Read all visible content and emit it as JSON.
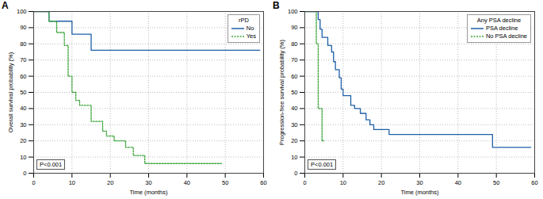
{
  "chart_data": [
    {
      "type": "line",
      "title": "A",
      "x_label": "Time (months)",
      "y_label": "Overall survival probability (%)",
      "xlim": [
        0,
        60
      ],
      "xticks": [
        0,
        10,
        20,
        30,
        40,
        50,
        60
      ],
      "ylim": [
        0,
        100
      ],
      "yticks": [
        0,
        10,
        20,
        30,
        40,
        50,
        60,
        70,
        80,
        90,
        100
      ],
      "grid": true,
      "legend": "top-right",
      "legend_title": "rPD",
      "annotation": "P<0.001",
      "series": [
        {
          "name": "No",
          "color": "#1f5fa8",
          "line_style": "solid",
          "x": [
            0,
            4,
            10,
            15,
            59
          ],
          "values": [
            100,
            94,
            86,
            76,
            76
          ]
        },
        {
          "name": "Yes",
          "color": "#3aa53a",
          "line_style": "dotted",
          "x": [
            0,
            4,
            6,
            8,
            9,
            10,
            11,
            12,
            15,
            18,
            19,
            21,
            24,
            26,
            29,
            49
          ],
          "values": [
            100,
            94,
            87,
            79,
            60,
            50,
            45,
            42,
            32,
            26,
            23,
            20,
            16,
            11,
            6,
            6
          ]
        }
      ]
    },
    {
      "type": "line",
      "title": "B",
      "x_label": "Time (months)",
      "y_label": "Progression-free survival probability (%)",
      "xlim": [
        0,
        60
      ],
      "xticks": [
        0,
        10,
        20,
        30,
        40,
        50,
        60
      ],
      "ylim": [
        0,
        100
      ],
      "yticks": [
        0,
        10,
        20,
        30,
        40,
        50,
        60,
        70,
        80,
        90,
        100
      ],
      "grid": true,
      "legend": "top-right",
      "legend_title": "Any PSA decline",
      "annotation": "P<0.001",
      "series": [
        {
          "name": "PSA decline",
          "color": "#1f5fa8",
          "line_style": "solid",
          "x": [
            0,
            3.5,
            4,
            4.5,
            6,
            7,
            7.5,
            8,
            9,
            9.5,
            10,
            12,
            13,
            14.5,
            16,
            17,
            18,
            22,
            49,
            59
          ],
          "values": [
            100,
            95,
            89,
            84,
            79,
            75,
            69,
            64,
            59,
            52,
            48,
            42,
            40,
            37,
            33,
            30,
            27,
            24,
            16,
            16
          ]
        },
        {
          "name": "No PSA decline",
          "color": "#3aa53a",
          "line_style": "dotted",
          "x": [
            0,
            3,
            3.5,
            4.5,
            5
          ],
          "values": [
            100,
            80,
            40,
            20,
            20
          ]
        }
      ]
    }
  ]
}
